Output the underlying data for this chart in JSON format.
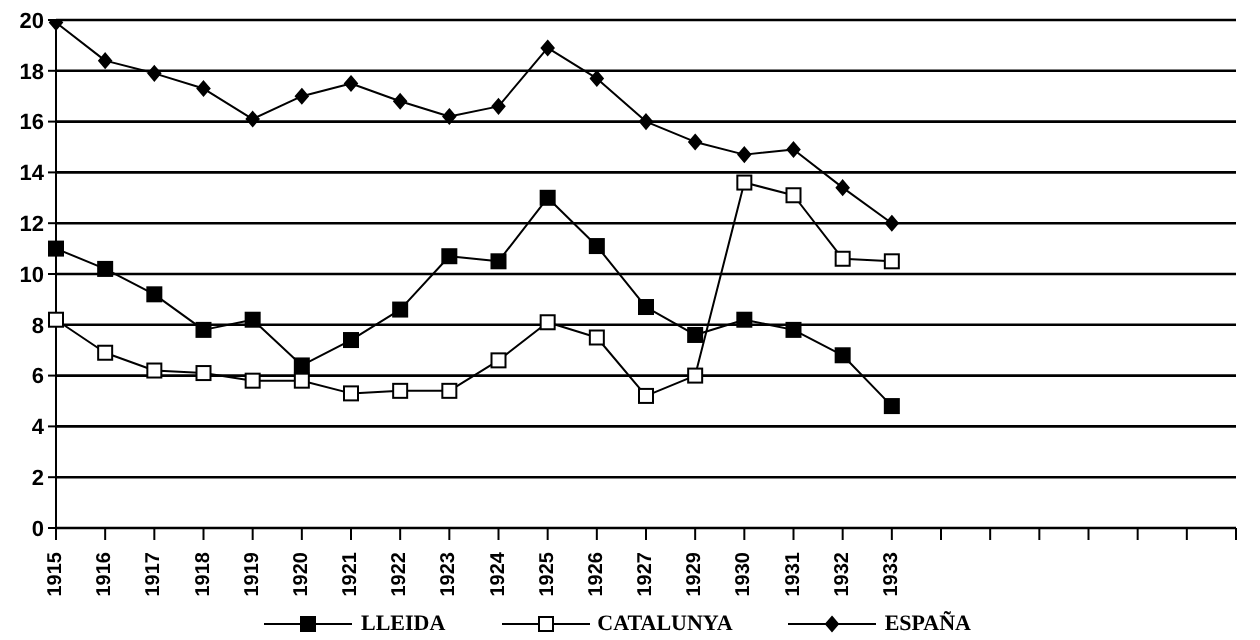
{
  "chart_data": {
    "type": "line",
    "categories": [
      "1915",
      "1916",
      "1917",
      "1918",
      "1919",
      "1920",
      "1921",
      "1922",
      "1923",
      "1924",
      "1925",
      "1926",
      "1927",
      "1929",
      "1930",
      "1931",
      "1932",
      "1933",
      null,
      null,
      null,
      null,
      null,
      null,
      null
    ],
    "series": [
      {
        "name": "LLEIDA",
        "color": "#000000",
        "marker": "square",
        "values": [
          11.0,
          10.2,
          9.2,
          7.8,
          8.2,
          6.4,
          7.4,
          8.6,
          10.7,
          10.5,
          13.0,
          11.1,
          8.7,
          7.6,
          8.2,
          7.8,
          6.8,
          4.8,
          null,
          null,
          null,
          null,
          null,
          null,
          null
        ]
      },
      {
        "name": "CATALUNYA",
        "color": "#000000",
        "marker": "square",
        "values": [
          8.2,
          6.9,
          6.2,
          6.1,
          5.8,
          5.8,
          5.3,
          5.4,
          5.4,
          6.6,
          8.1,
          7.5,
          5.2,
          6.0,
          13.6,
          13.1,
          10.6,
          10.5,
          null,
          null,
          null,
          null,
          null,
          null,
          null
        ]
      },
      {
        "name": "ESPAÑA",
        "color": "#000000",
        "marker": "diamond",
        "values": [
          19.9,
          18.4,
          17.9,
          17.3,
          16.1,
          17.0,
          17.5,
          16.8,
          16.2,
          16.6,
          18.9,
          17.7,
          16.0,
          15.2,
          14.7,
          14.9,
          13.4,
          12.0,
          null,
          null,
          null,
          null,
          null,
          null,
          null
        ]
      }
    ],
    "ylim": [
      0,
      20
    ],
    "yticks": [
      0,
      2,
      4,
      6,
      8,
      10,
      12,
      14,
      16,
      18,
      20
    ],
    "grid": "y",
    "legend": "bottom",
    "line_style": "solid"
  }
}
